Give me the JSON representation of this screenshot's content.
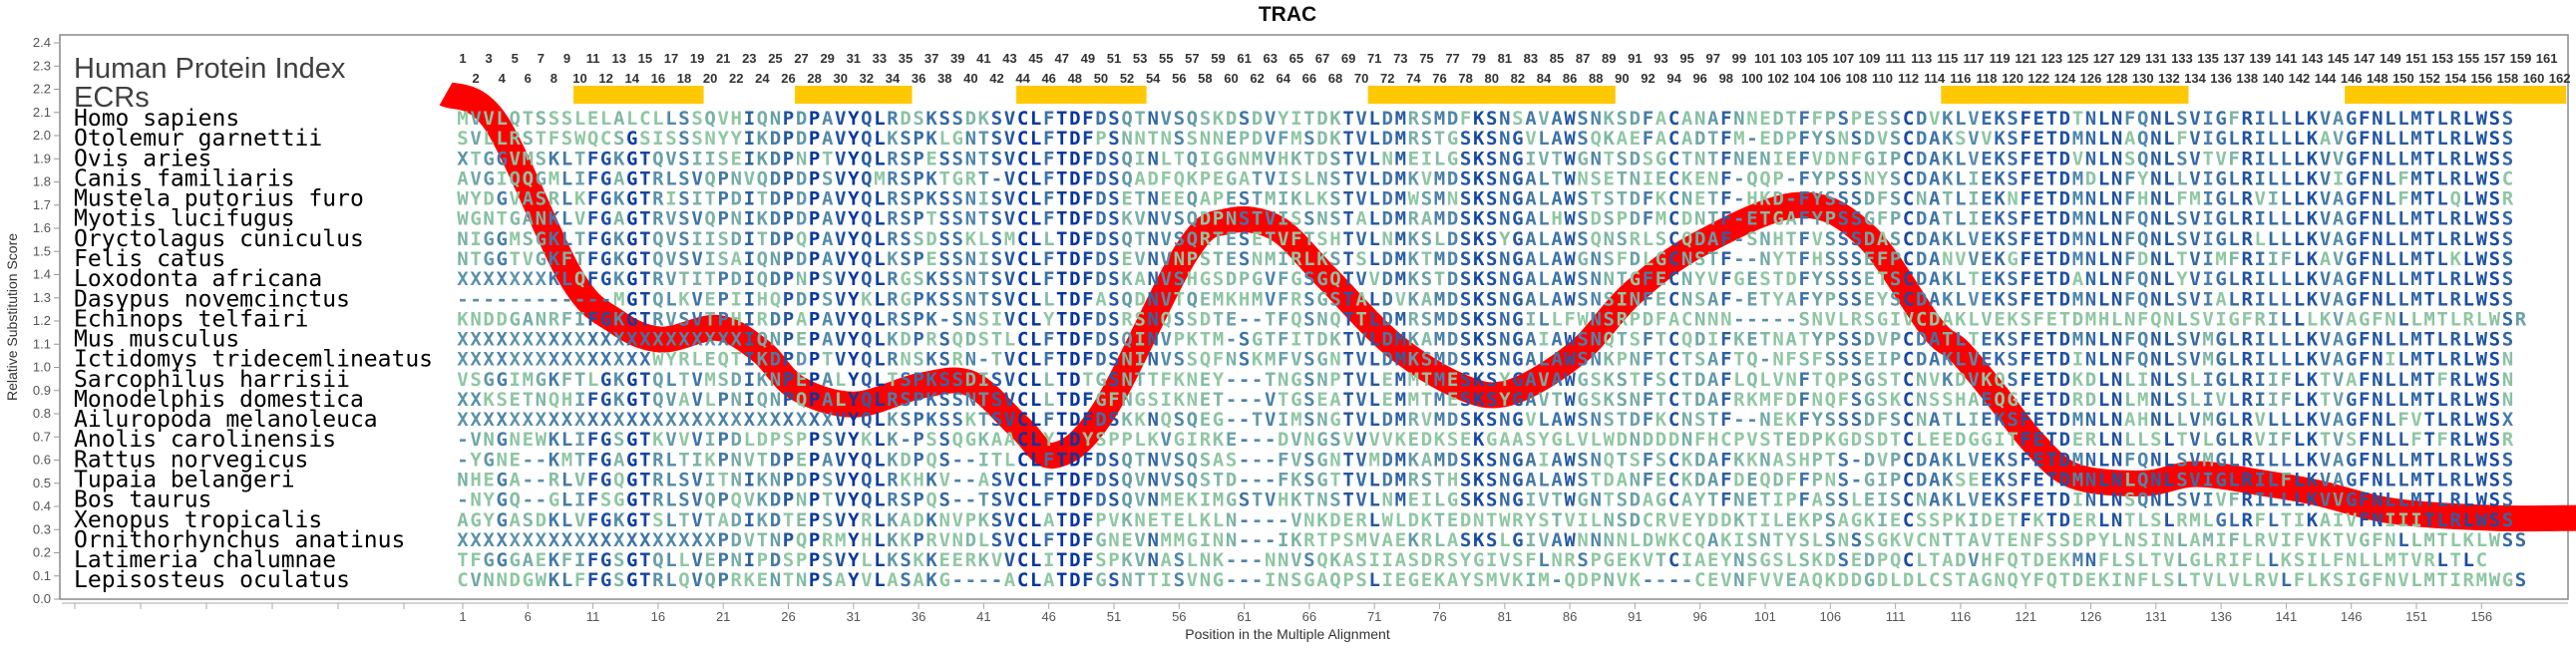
{
  "title": "TRAC",
  "header": {
    "index_label": "Human Protein Index",
    "ecr_label": "ECRs"
  },
  "colors": {
    "curve": "#ff0000",
    "ecr": "#ffc800",
    "conserved": "#0636a0",
    "intermediate": "#4f86aa",
    "variable": "#8fc7a3",
    "frame": "#8a8a8a"
  },
  "column_numbers": [
    1,
    2,
    3,
    4,
    5,
    6,
    7,
    8,
    9,
    10,
    11,
    12,
    13,
    14,
    15,
    16,
    17,
    18,
    19,
    20,
    21,
    22,
    23,
    24,
    25,
    26,
    27,
    28,
    29,
    30,
    31,
    32,
    33,
    34,
    35,
    36,
    37,
    38,
    39,
    40,
    41,
    42,
    43,
    44,
    45,
    46,
    47,
    48,
    49,
    50,
    51,
    52,
    53,
    54,
    55,
    56,
    57,
    58,
    59,
    60,
    61,
    62,
    63,
    64,
    65,
    66,
    67,
    68,
    69,
    70,
    71,
    72,
    73,
    74,
    75,
    76,
    77,
    78,
    79,
    80,
    81,
    82,
    83,
    84,
    85,
    86,
    87,
    88,
    89,
    90,
    91,
    92,
    93,
    94,
    95,
    96,
    97,
    98,
    99,
    100,
    101,
    102,
    103,
    104,
    105,
    106,
    107,
    108,
    109,
    110,
    111,
    112,
    113,
    114,
    115,
    116,
    117,
    118,
    119,
    120,
    121,
    122,
    123,
    124,
    125,
    126,
    127,
    128,
    129,
    130,
    131,
    132,
    133,
    134,
    135,
    136,
    137,
    138,
    139,
    140,
    141,
    142,
    143,
    144,
    145,
    146,
    147,
    148,
    149,
    150,
    151,
    152,
    153,
    154,
    155,
    156,
    157,
    158,
    159,
    160,
    161,
    162
  ],
  "ecrs": [
    [
      10,
      19
    ],
    [
      27,
      35
    ],
    [
      44,
      53
    ],
    [
      71,
      89
    ],
    [
      115,
      133
    ],
    [
      146,
      162
    ]
  ],
  "alignment": {
    "rows": [
      {
        "species": "Homo sapiens",
        "sequence": "MVVLQTSSSLELALCLLSSQVHIQNPDPAVYQLRDSKSSDKSVCLFTDFDSQTNVSQSKDSDVYITDKTVLDMRSMDFKSNSAVAWSNKSDFACANAFNNEDTFFPSPESSCDVKLVEKSFETDTNLNFQNLSVIGFRILLLKVAGFNLLMTLRLWSS"
      },
      {
        "species": "Otolemur garnettii",
        "sequence": "SVLLRSTFSWQCSGSISSSNYYIKDPDPAVYQLKSPKLGNTSVCLFTDFPSNNTNSSNNEPDVFMSDKTVLDMRSTGSKSNGVLAWSQKAEFACADTFM-EDPFYSNSDVSCDAKSVVKSFETDMNLNAQNLFVIGLRILLLKAVGFNLLMTLRLWSS"
      },
      {
        "species": "Ovis aries",
        "sequence": "XTGGVMSKLTFGKGTQVSIISEIKDPNPTVYQLRSPESSNTSVCLFTDFDSQINLTQIGGNMVHKTDSTVLNMEILGSKSNGIVTWGNTSDSGCTNTFNENIEFVDNFGIPCDAKLVEKSFETDVNLNSQNLSVTVFRILLLKVVGFNLLMTLRLWSS"
      },
      {
        "species": "Canis familiaris",
        "sequence": "AVGIQQGMLIFGAGTRLSVQPNVQDPDPSVYQMRSPKTGRT-VCLFTDFDSQADFQKPEGATVISLNSTVLDMKVMDSKSNGALTWNSETNIECKENF-QQP-FYPSSNYSCDAKLIEKSFETDMDLNFYNLLVIGLRILLLKVIGFNLFMTLRLWSC"
      },
      {
        "species": "Mustela putorius furo",
        "sequence": "WYDGVASRLKFGKGTRISITPDITDPDPAVYQLRSPKSSNISVCLFTDFDSETNEEQAPESTMIKLKSTVLDMWSMNSKSNGALAWSTSTDFKCNETF-HKD-FYSSSDFSCNATLIEKNFETDMNLNFHNLFMIGLRVILLKVAGFNLFMTLQLWSR"
      },
      {
        "species": "Myotis lucifugus",
        "sequence": "WGNTGANKLVFGAGTRVSVQPNIKDPDPAVYQLRSPTSSNTSVCLFTDFDSKVNVSQDPNSTVISSNSTALDMRAMDSKSNGALHWSDSPDFMCDNTF-ETGAFYPSSGFPCDATLIEKSFETDMNLNFQNLSVIGLRILLLKVAGFNLLMTLRLWSS"
      },
      {
        "species": "Oryctolagus cuniculus",
        "sequence": "NIGGMSGKLTFGKGTQVSIISDITDPQPAVYQLRSSDSSKLSMCLLTDFDSQTNVSQRTESETVFTSHTVLNMKSLDSKSYGALAWSQNSRLSCQDAF-SNHTFVSSSDASCDAKLVEKSFETDMNLNFQNLSVIGLRLLLLKVAGFNLLMTLRLWSS"
      },
      {
        "species": "Felis catus",
        "sequence": "NTGGTVGKFTFGKGTQVSVISAIQNPDPAVYQLKSPESSNISVCLFTDFDSEVNVNPSTESNMIRLKSTSLDMKTMDSKSNGALAWGNSFDLGCNSTF--NYTFHSSSEFPCDANVVEKGFETDMNLNFDNLTVIMFRIIFLKAVGFNLLMTLKLWSS"
      },
      {
        "species": "Loxodonta africana",
        "sequence": "XXXXXXXKLQFGKGTRVTITPDIQDPNPSVYQLRGSKSSNTSVCLFTDFDSKANVSHGSDPGVFGSGQTVVDMKSTDSKSNGALAWSNNTGFECNYVFGESTDFYSSSETSCDAKLTEKSFETDANLNFQNLYVIGLRILLLKVAGFNLLMTLRLWSS"
      },
      {
        "species": "Dasypus novemcinctus",
        "sequence": "------------MGTQLKVEPIIHQPDPSVYKLRGPKSSNTSVCLLTDFASQDNVTQEMKHMVFRSGSTALDVKAMDSKSNGALAWSNSINFECNSAF-ETYAFYPSSEYSCDAKLVEKSFETDMNLNFQNLSVIALRILLLKVAGFNLLMTLRLWSS"
      },
      {
        "species": "Echinops telfairi",
        "sequence": "KNDDGANRFIFGKGTRVSVTPHIRDPAPAVYQLRSPK-SNSIVCLYTDFDSRSNQSSDTE--TFQSNQTTLDMRSMDSKSNGILLFWNSRPDFACNNN-----SNVLRSGIVCDAKLVEKSFETDMHLNFQNLSVIGFRILLLKVAGFNLLMTLRLWSR"
      },
      {
        "species": "Mus musculus",
        "sequence": "XXXXXXXXXXXXXXXXXXXXXXIQNPEPAVYQLKDPRSQDSTLCLFTDFDSQINVPKTM-SGTFITDKTVLDMKAMDSKSNGAIAWSNQTSFTCQDIFKETNATYPSSDVPCDATLTEKSFETDMNLNFQNLSVMGLRILLLKVAGFNLLMTLRLWSS"
      },
      {
        "species": "Ictidomys tridecemlineatus",
        "sequence": "XXXXXXXXXXXXXXXWYRLEQTIKDPDPTVYQLRNSKSRN-TVCLFTDFDSNINVSSQFNSKMFVSGNTVLDMKSMDSKSNGALAWSNKPNFTCTSAFTQ-NFSFSSSEIPCDAKLVEKSFETDINLNFQNLSVMGLRILLLKVAGFNILMTLRLWSN"
      },
      {
        "species": "Sarcophilus harrisii",
        "sequence": "VSGGIMGKFTLGKGTQLTVMSDIKNPEPALYQLTSPKSSDISVCLLTDTGSNTTFKNEY---TNGSNPTVLEMMTMESKSYGAVAWGSKSTFSCTDAFLQLVNFTQPSGSTCNVKDVKQSFETDKDLNLINLSLIGLRIIFLKTVAFNLLMTFRLWSN"
      },
      {
        "species": "Monodelphis domestica",
        "sequence": "XXKSETNQHIFGKGTQVAVLPNIQNPQPALYQLRSPKSSNTSVCLLTDFGFNGSIKNET---VTGSEATVLEMMTMESKSYGAVTWGSKSNFTCTDAFRKMFDFNQFSGSKCNSSHAEQGFETDRDLNLMNLSLIVLRIIFLKTVGFNLLMTLRLWSN"
      },
      {
        "species": "Ailuropoda melanoleuca",
        "sequence": "XXXXXXXXXXXXXXXXXXXXXXXXXXXXXVYQLKSPKSSKTSVCLFTDFDSKKNQSQEG--TVIMSNGTVLDMRVMDSKSNGVLAWSNSTDFKCNSTF--NEKFYSSSDFSCNATLIEKSFETDMNLNAHNLLVMGLRVLLLKVAGFNLFVTLRLWSX"
      },
      {
        "species": "Anolis carolinensis",
        "sequence": "-VNGNEWKLIFGSGTKVVVIPDLDPSPPSVYKLK-PSSQGKAACLYTDYSPPLKVGIRKE---DVNGSVVVVKEDKSEKGAASYGLVLWDNDDDNFHCPVSTEDPKGDSDTCLEEDGGITFETDERLNLLSLTVLGLRVIFLKTVSFNLLFTFRLWSR"
      },
      {
        "species": "Rattus norvegicus",
        "sequence": "-YGNE--KMTFGAGTRLTIKPNVTDPEPAVYQLKDPQS--ITLCLFTDFDSQTNVSQSAS---FVSGNTVMDMKAMDSKSNGAIAWSNQTSFSCKDAFKKNASHPTS-DVPCDAKLVEKSFETDMNLNFQNLSVMGLRILLLKVAGFNLLMTLRLWSS"
      },
      {
        "species": "Tupaia belangeri",
        "sequence": "NHEGA--RLVFGQGTRLSVITNIKNPDPSVYQLRKHKV--ASVCLFTDFDSQVNVSQSTD---FKSGTTVLDMRSTHSKSNGALAWSTDANFECKDAFDEQDFFPNS-GIPCDAKSEEKSFETDMNLNLQNLSVIGLRILFLKVAGFNLLMTLRLWSS"
      },
      {
        "species": "Bos taurus",
        "sequence": "-NYGQ--GLIFSGGTRLSVQPQVKDPNPTVYQLRSPQS--TSVCLFTDFDSQVNMEKIMGSTVHKTNSTVLNMEILGSKSNGIVTWGNTSDAGCAYTFNETIPFASSLEISCNAKLVEKSFETDINLNSQNLSVIVFRILLLKVVGFNLLMTLRLWSS"
      },
      {
        "species": "Xenopus tropicalis",
        "sequence": "AGYGASDKLVFGKGTSLTVTADIKDTEPSVYRLKADKNVPKSVCLATDFPVKNETELKLN----VNKDERLWLDKTEDNTWRYSTVILNSDCRVEYDDKTILEKPSAGKIECSSPKIDETFKTDERLNTLSLRMLGLRFLTIKAIVFNIIITLRLWSS"
      },
      {
        "species": "Ornithorhynchus anatinus",
        "sequence": "XXXXXXXXXXXXXXXXXXXXPDVTNPQPRMYHLKKPRVNDLSVCLFTDFGNEVNMMGINN---IKRTPSMVAEKRLASKSLGIVAWNNNNLDWKCQAKISNTYSLSNSSGKVCNTTAVTENFSSDPYLNSINLAMIFLRVIFVKTVGFNLLMTLKLWSS"
      },
      {
        "species": "Latimeria chalumnae",
        "sequence": "TFGGGAEKFIFGSGTQLLVEPNIPDSPPSVYLLKSKKEERKVVCLITDFSPKVNASLNK---NNVSQKASIIASDRSYGIVSFLNRSPGEKVTCIAEYNSGSLSKDSEDPQCLTADVHFQTDEKMNFLSLTVLGLRIFLLKSILFNLLMTVRLTLC"
      },
      {
        "species": "Lepisosteus oculatus",
        "sequence": "CVNNDGWKLFFGSGTRLQVQPRKENTNPSAYVLASAKG----ACLATDFGSNTTISVNG---INSGAQPSLIEGEKAYSMVKIM-QDPNVK----CEVNFVVEAQKDDGDLDLCSTAGNQYFQTDEKINFLSLTVLVLRVLFLKSIGFNVLMTIRMWGS"
      }
    ]
  },
  "chart_data": {
    "type": "line",
    "title": "TRAC",
    "xlabel": "Position in the Multiple Alignment",
    "ylabel": "Relative Substitution Score",
    "xlim": [
      1,
      162
    ],
    "ylim": [
      0,
      2.4
    ],
    "grid": false,
    "xticks": [
      "1",
      "6",
      "11",
      "16",
      "21",
      "26",
      "31",
      "36",
      "41",
      "46",
      "51",
      "56",
      "61",
      "66",
      "71",
      "76",
      "81",
      "86",
      "91",
      "96",
      "101",
      "106",
      "111",
      "116",
      "121",
      "126",
      "131",
      "136",
      "141",
      "146",
      "151",
      "156"
    ],
    "yticks": [
      "0.0",
      "0.1",
      "0.2",
      "0.3",
      "0.4",
      "0.5",
      "0.6",
      "0.7",
      "0.8",
      "0.9",
      "1.0",
      "1.1",
      "1.2",
      "1.3",
      "1.4",
      "1.5",
      "1.6",
      "1.7",
      "1.8",
      "1.9",
      "2.0",
      "2.1",
      "2.2",
      "2.3",
      "2.4"
    ],
    "series": [
      {
        "x": [
          -0.3,
          3.5,
          9.3,
          12.7,
          16.2,
          20.6,
          23.9,
          26.7,
          31.1,
          36.1,
          40,
          43.8,
          46.4,
          50.2,
          56.6,
          59.7,
          63.5,
          67.3,
          72.4,
          77.5,
          81.3,
          86.5,
          90.8,
          95.9,
          103.5,
          108.7,
          113.8,
          115.9,
          118.6,
          121.7,
          124.8,
          130.1,
          134.1,
          139.3,
          143.3,
          149.2,
          156.9,
          163.3
        ],
        "y": [
          2.18,
          2.06,
          1.39,
          1.2,
          1.12,
          1.17,
          1.07,
          0.91,
          0.84,
          0.92,
          0.93,
          0.74,
          0.62,
          0.81,
          1.5,
          1.63,
          1.6,
          1.39,
          1.1,
          0.92,
          0.89,
          1.06,
          1.32,
          1.53,
          1.7,
          1.57,
          1.17,
          1.07,
          0.89,
          0.67,
          0.53,
          0.5,
          0.54,
          0.5,
          0.46,
          0.38,
          0.35,
          0.35
        ]
      }
    ]
  }
}
